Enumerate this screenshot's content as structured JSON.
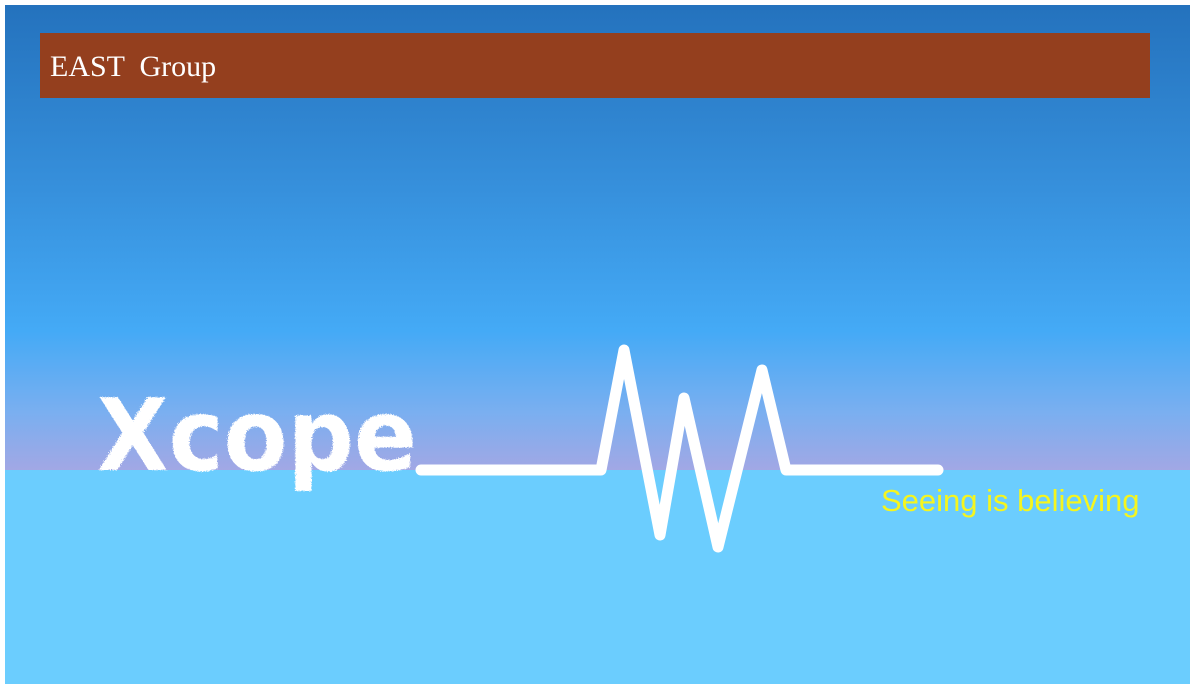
{
  "header": {
    "title": "EAST  Group"
  },
  "logo": {
    "wordmark": "Xcope",
    "tagline": "Seeing is believing",
    "icon": "heartbeat-pulse-line"
  },
  "colors": {
    "header_bar": "#943f1e",
    "sky_top": "#2472bd",
    "sky_mid": "#44aaf6",
    "sky_bottom": "#a4a7e4",
    "lower_band": "#6bcdfe",
    "wordmark": "#ffffff",
    "tagline": "#f5f51e"
  }
}
